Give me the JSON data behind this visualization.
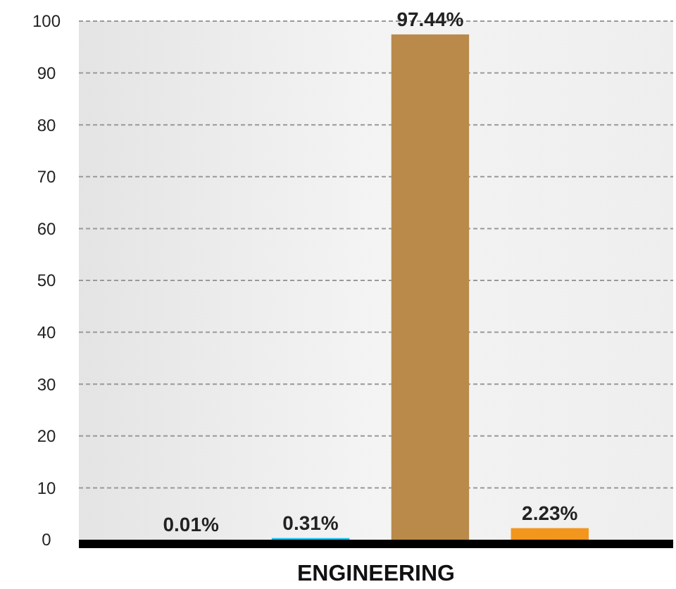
{
  "chart_data": {
    "type": "bar",
    "xlabel": "ENGINEERING",
    "categories": [
      null,
      null,
      null,
      null
    ],
    "values": [
      0.01,
      0.31,
      97.44,
      2.23
    ],
    "colors": [
      "#9aa4ae",
      "#12c0f0",
      "#b98a4a",
      "#f2961e"
    ],
    "value_labels": [
      "0.01%",
      "0.31%",
      "97.44%",
      "2.23%"
    ],
    "ylim": [
      0,
      100
    ],
    "yticks": [
      0,
      10,
      20,
      30,
      40,
      50,
      60,
      70,
      80,
      90,
      100
    ],
    "grid": "y"
  }
}
